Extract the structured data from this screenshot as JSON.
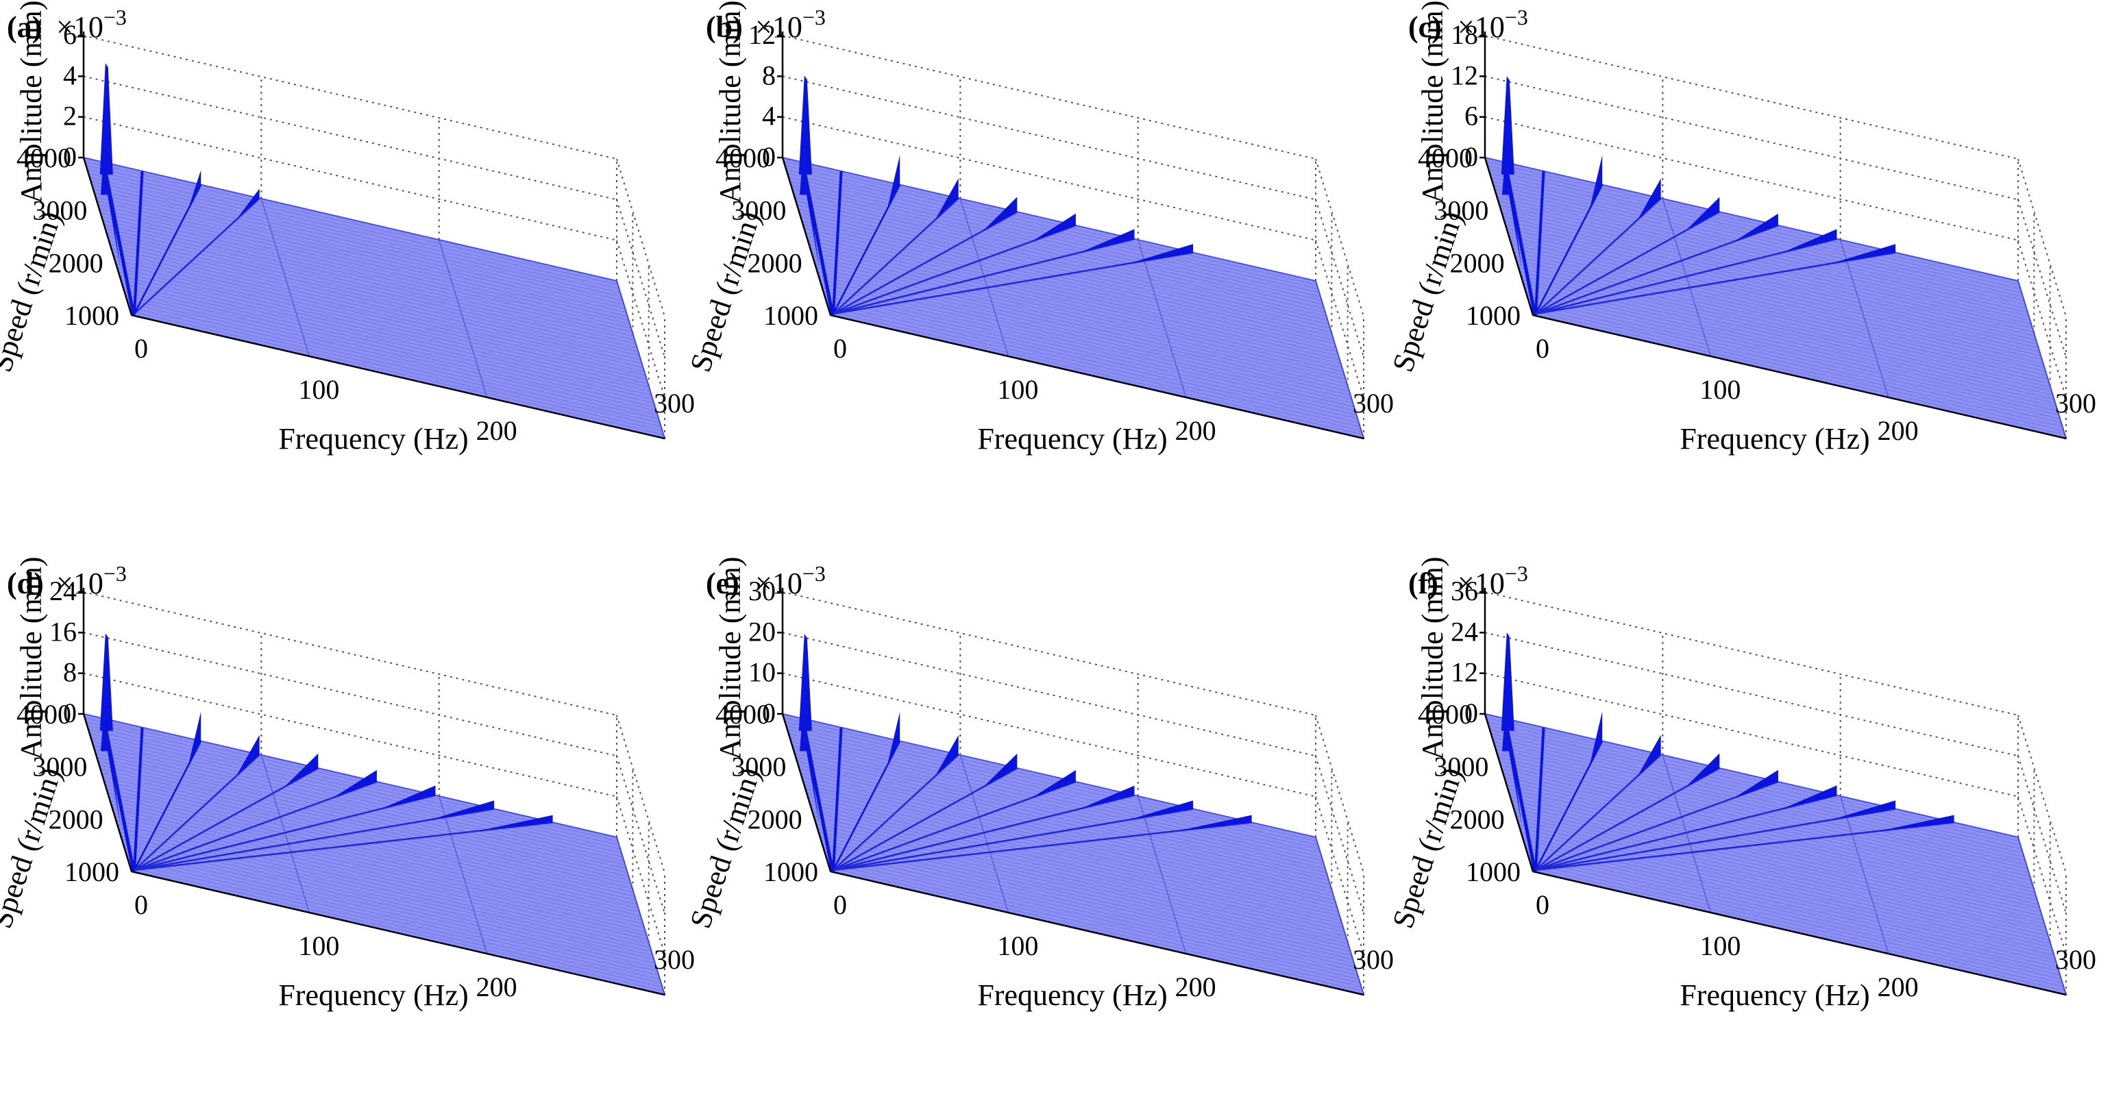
{
  "colors": {
    "surface": "#8c90f2",
    "surface_edge": "#4c52e6",
    "spike": "#0a14dc",
    "grid": "#555555",
    "axis": "#000000"
  },
  "chart_data": [
    {
      "panel": "(a)",
      "type": "3d-waterfall",
      "multiplier": "×10",
      "exponent": "−3",
      "zlabel": "Amplitude (mm)",
      "xlabel": "Frequency (Hz)",
      "ylabel": "Speed (r/min)",
      "z_ticks": [
        "0",
        "2",
        "4",
        "6"
      ],
      "zlim": [
        0,
        6
      ],
      "x_ticks": [
        "0",
        "100",
        "200",
        "300"
      ],
      "xlim": [
        0,
        300
      ],
      "y_ticks": [
        "1000",
        "2000",
        "3000",
        "4000"
      ],
      "ylim": [
        1000,
        4000
      ],
      "order_lines": 3,
      "peak_amplitude": 4.8
    },
    {
      "panel": "(b)",
      "type": "3d-waterfall",
      "multiplier": "×10",
      "exponent": "−3",
      "zlabel": "Amplitude (mm)",
      "xlabel": "Frequency (Hz)",
      "ylabel": "Speed (r/min)",
      "z_ticks": [
        "0",
        "4",
        "8",
        "12"
      ],
      "zlim": [
        0,
        12
      ],
      "x_ticks": [
        "0",
        "100",
        "200",
        "300"
      ],
      "xlim": [
        0,
        300
      ],
      "y_ticks": [
        "1000",
        "2000",
        "3000",
        "4000"
      ],
      "ylim": [
        1000,
        4000
      ],
      "order_lines": 7,
      "peak_amplitude": 8.4
    },
    {
      "panel": "(c)",
      "type": "3d-waterfall",
      "multiplier": "×10",
      "exponent": "−3",
      "zlabel": "Amplitude (mm)",
      "xlabel": "Frequency (Hz)",
      "ylabel": "Speed (r/min)",
      "z_ticks": [
        "0",
        "6",
        "12",
        "18"
      ],
      "zlim": [
        0,
        18
      ],
      "x_ticks": [
        "0",
        "100",
        "200",
        "300"
      ],
      "xlim": [
        0,
        300
      ],
      "y_ticks": [
        "1000",
        "2000",
        "3000",
        "4000"
      ],
      "ylim": [
        1000,
        4000
      ],
      "order_lines": 7,
      "peak_amplitude": 12.5
    },
    {
      "panel": "(d)",
      "type": "3d-waterfall",
      "multiplier": "×10",
      "exponent": "−3",
      "zlabel": "Amplitude (mm)",
      "xlabel": "Frequency (Hz)",
      "ylabel": "Speed (r/min)",
      "z_ticks": [
        "0",
        "8",
        "16",
        "24"
      ],
      "zlim": [
        0,
        24
      ],
      "x_ticks": [
        "0",
        "100",
        "200",
        "300"
      ],
      "xlim": [
        0,
        300
      ],
      "y_ticks": [
        "1000",
        "2000",
        "3000",
        "4000"
      ],
      "ylim": [
        1000,
        4000
      ],
      "order_lines": 8,
      "peak_amplitude": 16.5
    },
    {
      "panel": "(e)",
      "type": "3d-waterfall",
      "multiplier": "×10",
      "exponent": "−3",
      "zlabel": "Amplitude (mm)",
      "xlabel": "Frequency (Hz)",
      "ylabel": "Speed (r/min)",
      "z_ticks": [
        "0",
        "10",
        "20",
        "30"
      ],
      "zlim": [
        0,
        30
      ],
      "x_ticks": [
        "0",
        "100",
        "200",
        "300"
      ],
      "xlim": [
        0,
        300
      ],
      "y_ticks": [
        "1000",
        "2000",
        "3000",
        "4000"
      ],
      "ylim": [
        1000,
        4000
      ],
      "order_lines": 8,
      "peak_amplitude": 20.5
    },
    {
      "panel": "(f)",
      "type": "3d-waterfall",
      "multiplier": "×10",
      "exponent": "−3",
      "zlabel": "Amplitude (mm)",
      "xlabel": "Frequency (Hz)",
      "ylabel": "Speed (r/min)",
      "z_ticks": [
        "0",
        "12",
        "24",
        "36"
      ],
      "zlim": [
        0,
        36
      ],
      "x_ticks": [
        "0",
        "100",
        "200",
        "300"
      ],
      "xlim": [
        0,
        300
      ],
      "y_ticks": [
        "1000",
        "2000",
        "3000",
        "4000"
      ],
      "ylim": [
        1000,
        4000
      ],
      "order_lines": 8,
      "peak_amplitude": 25
    }
  ]
}
